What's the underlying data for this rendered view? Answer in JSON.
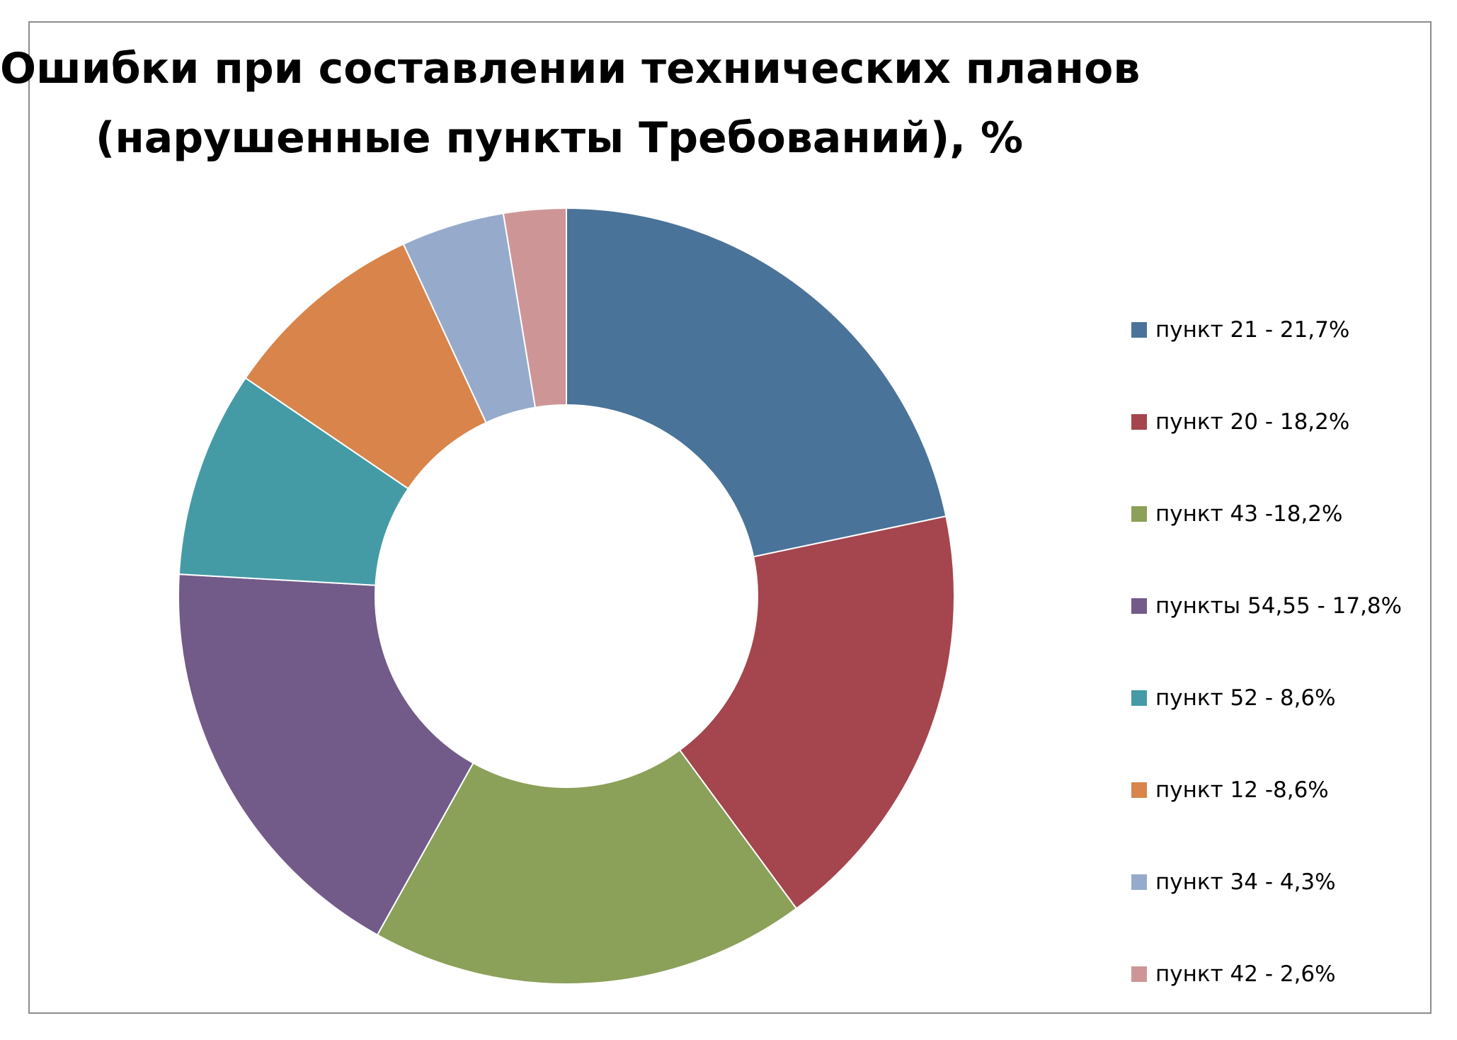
{
  "chart_data": {
    "type": "pie",
    "subtype": "donut",
    "title_lines": [
      "Ошибки при составлении технических планов",
      "(нарушенные пункты Требований), %"
    ],
    "legend_position": "right",
    "slices": [
      {
        "label": "пункт 21 - 21,7%",
        "value": 21.7,
        "color": "#4a7399"
      },
      {
        "label": "пункт 20 - 18,2%",
        "value": 18.2,
        "color": "#a5454e"
      },
      {
        "label": "пункт 43 -18,2%",
        "value": 18.2,
        "color": "#8ba059"
      },
      {
        "label": "пункты 54,55  - 17,8%",
        "value": 17.8,
        "color": "#725a89"
      },
      {
        "label": "пункт 52 - 8,6%",
        "value": 8.6,
        "color": "#449ba6"
      },
      {
        "label": "пункт 12 -8,6%",
        "value": 8.6,
        "color": "#d8844a"
      },
      {
        "label": "пункт 34 - 4,3%",
        "value": 4.3,
        "color": "#96abcb"
      },
      {
        "label": "пункт 42 - 2,6%",
        "value": 2.6,
        "color": "#ce9597"
      }
    ]
  }
}
